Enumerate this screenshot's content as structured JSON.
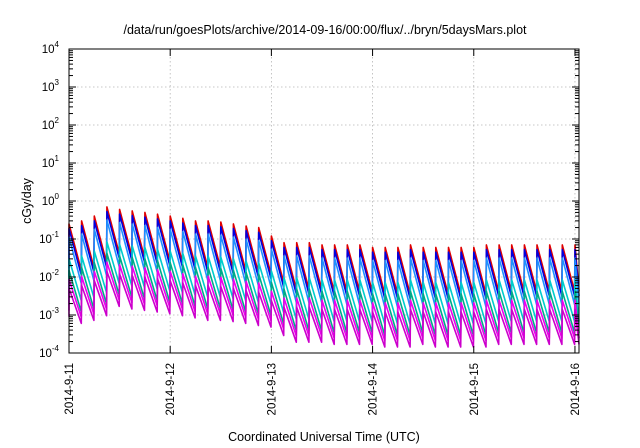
{
  "chart_data": {
    "type": "line",
    "title": "/data/run/goesPlots/archive/2014-09-16/00:00/flux/../bryn/5daysMars.plot",
    "xlabel": "Coordinated Universal Time (UTC)",
    "ylabel": "cGy/day",
    "yscale": "log",
    "ylim": [
      0.0001,
      10000
    ],
    "xlim": [
      0,
      5.04
    ],
    "grid": true,
    "x_tick_labels": [
      "2014-9-11",
      "2014-9-12",
      "2014-9-13",
      "2014-9-14",
      "2014-9-15",
      "2014-9-16"
    ],
    "y_ticks": [
      {
        "base": "10",
        "exp": "4"
      },
      {
        "base": "10",
        "exp": "3"
      },
      {
        "base": "10",
        "exp": "2"
      },
      {
        "base": "10",
        "exp": "1"
      },
      {
        "base": "10",
        "exp": "0"
      },
      {
        "base": "10",
        "exp": "-1"
      },
      {
        "base": "10",
        "exp": "-2"
      },
      {
        "base": "10",
        "exp": "-3"
      },
      {
        "base": "10",
        "exp": "-4"
      }
    ],
    "x_units": "days since 2014-9-11 00:00 UTC",
    "sawtooth": {
      "cycles_per_day": 8,
      "peak_times": [
        0.0,
        0.125,
        0.25,
        0.375,
        0.5,
        0.625,
        0.75,
        0.875,
        1.0,
        1.125,
        1.25,
        1.375,
        1.5,
        1.625,
        1.75,
        1.875,
        2.0,
        2.125,
        2.25,
        2.375,
        2.5,
        2.625,
        2.75,
        2.875,
        3.0,
        3.125,
        3.25,
        3.375,
        3.5,
        3.625,
        3.75,
        3.875,
        4.0,
        4.125,
        4.25,
        4.375,
        4.5,
        4.625,
        4.75,
        4.875,
        5.0
      ],
      "envelope_peak_red": [
        0.25,
        0.3,
        0.4,
        0.7,
        0.6,
        0.55,
        0.5,
        0.45,
        0.4,
        0.35,
        0.3,
        0.3,
        0.28,
        0.25,
        0.22,
        0.2,
        0.12,
        0.08,
        0.08,
        0.08,
        0.07,
        0.07,
        0.07,
        0.07,
        0.06,
        0.06,
        0.06,
        0.07,
        0.06,
        0.06,
        0.06,
        0.06,
        0.06,
        0.07,
        0.07,
        0.07,
        0.07,
        0.07,
        0.07,
        0.07,
        0.07
      ]
    },
    "series": [
      {
        "color": "#e00000",
        "peak_scale": 1.0,
        "trough_ratio": 0.06
      },
      {
        "color": "#0000e0",
        "peak_scale": 0.75,
        "trough_ratio": 0.06
      },
      {
        "color": "#1e90ff",
        "peak_scale": 0.45,
        "trough_ratio": 0.06
      },
      {
        "color": "#00cccc",
        "peak_scale": 0.12,
        "trough_ratio": 0.08
      },
      {
        "color": "#00aa88",
        "peak_scale": 0.06,
        "trough_ratio": 0.08
      },
      {
        "color": "#ee00ee",
        "peak_scale": 0.035,
        "trough_ratio": 0.1
      },
      {
        "color": "#cc00cc",
        "peak_scale": 0.02,
        "trough_ratio": 0.12
      }
    ]
  }
}
